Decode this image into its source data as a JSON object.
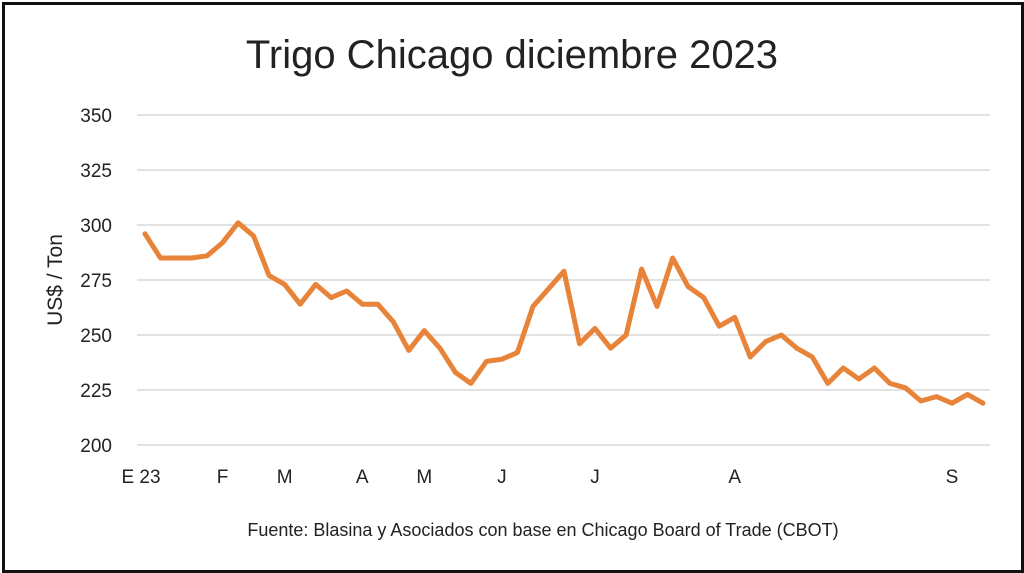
{
  "chart_data": {
    "type": "line",
    "title": "Trigo Chicago diciembre 2023",
    "ylabel": "US$ / Ton",
    "xlabel": "",
    "source": "Fuente: Blasina y Asociados con base en Chicago Board of Trade (CBOT)",
    "ylim": [
      200,
      350
    ],
    "yticks": [
      200,
      225,
      250,
      275,
      300,
      325,
      350
    ],
    "grid": true,
    "line_color": "#E8843A",
    "x_tick_labels": [
      {
        "index": 0,
        "label": "E 23"
      },
      {
        "index": 5,
        "label": "F"
      },
      {
        "index": 9,
        "label": "M"
      },
      {
        "index": 14,
        "label": "A"
      },
      {
        "index": 18,
        "label": "M"
      },
      {
        "index": 23,
        "label": "J"
      },
      {
        "index": 29,
        "label": "J"
      },
      {
        "index": 38,
        "label": "A"
      },
      {
        "index": 52,
        "label": "S"
      }
    ],
    "series": [
      {
        "name": "Trigo Chicago dic 2023",
        "values": [
          296,
          285,
          285,
          285,
          286,
          292,
          301,
          295,
          277,
          273,
          264,
          273,
          267,
          270,
          264,
          264,
          256,
          243,
          252,
          244,
          233,
          228,
          238,
          239,
          242,
          263,
          271,
          279,
          246,
          253,
          244,
          250,
          280,
          263,
          285,
          272,
          267,
          254,
          258,
          240,
          247,
          250,
          244,
          240,
          228,
          235,
          230,
          235,
          228,
          226,
          220,
          222,
          219,
          223,
          219
        ]
      }
    ]
  }
}
